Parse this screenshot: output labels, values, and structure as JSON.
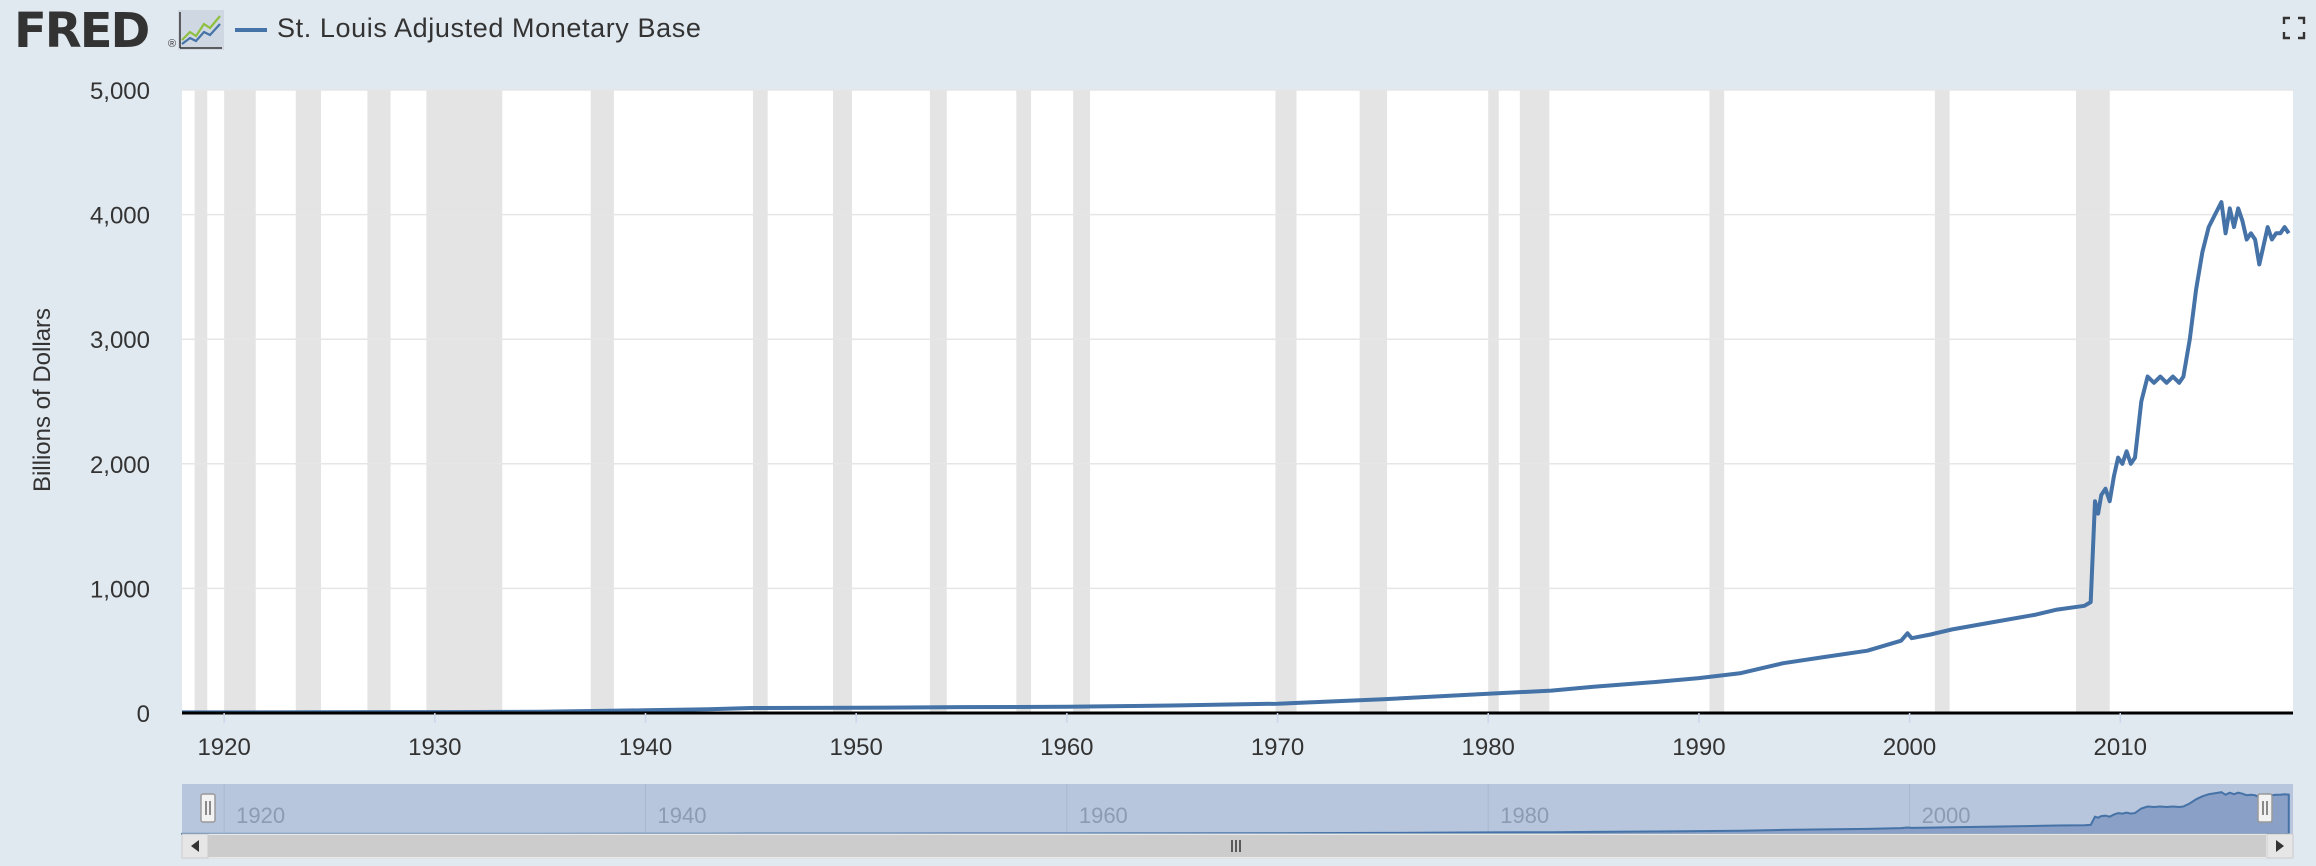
{
  "header": {
    "logo_text": "FRED",
    "logo_reg": "®",
    "graph_icon": "line-chart-icon",
    "fullscreen_icon": "fullscreen-icon"
  },
  "colors": {
    "series": "#4572a7",
    "recession": "#e4e4e4",
    "background": "#e1e9f0",
    "plot": "#ffffff",
    "navigator_fill": "#b7c6dc",
    "navigator_series": "#4572a7"
  },
  "chart_data": {
    "type": "line",
    "title": "",
    "xlabel": "",
    "ylabel": "Billions of Dollars",
    "xlim": [
      1918,
      2018.2
    ],
    "ylim": [
      0,
      5000
    ],
    "grid": true,
    "legend": "top-left",
    "x_ticks": [
      "1920",
      "1930",
      "1940",
      "1950",
      "1960",
      "1970",
      "1980",
      "1990",
      "2000",
      "2010"
    ],
    "y_ticks": [
      "0",
      "1,000",
      "2,000",
      "3,000",
      "4,000",
      "5,000"
    ],
    "navigator_ticks": [
      "1920",
      "1940",
      "1960",
      "1980",
      "2000"
    ],
    "series": [
      {
        "name": "St. Louis Adjusted Monetary Base",
        "color": "#4572a7",
        "x": [
          1918,
          1930,
          1935,
          1940,
          1943,
          1945,
          1950,
          1955,
          1960,
          1965,
          1970,
          1975,
          1980,
          1983,
          1985,
          1988,
          1990,
          1992,
          1994,
          1996,
          1998,
          1999.6,
          1999.9,
          2000.1,
          2001,
          2002,
          2004,
          2006,
          2007,
          2008.3,
          2008.6,
          2008.8,
          2008.95,
          2009.1,
          2009.3,
          2009.5,
          2009.7,
          2009.9,
          2010.1,
          2010.3,
          2010.5,
          2010.7,
          2011.0,
          2011.3,
          2011.6,
          2011.9,
          2012.2,
          2012.5,
          2012.8,
          2013.0,
          2013.3,
          2013.6,
          2013.9,
          2014.2,
          2014.5,
          2014.8,
          2015.0,
          2015.2,
          2015.4,
          2015.6,
          2015.8,
          2016.0,
          2016.2,
          2016.4,
          2016.6,
          2016.8,
          2017.0,
          2017.2,
          2017.4,
          2017.6,
          2017.8,
          2018.0
        ],
        "values": [
          5,
          7,
          10,
          22,
          30,
          40,
          42,
          47,
          50,
          60,
          75,
          110,
          155,
          180,
          210,
          250,
          280,
          320,
          400,
          450,
          500,
          580,
          640,
          600,
          630,
          670,
          730,
          790,
          830,
          860,
          890,
          1700,
          1600,
          1750,
          1800,
          1700,
          1900,
          2050,
          2000,
          2100,
          2000,
          2050,
          2500,
          2700,
          2650,
          2700,
          2650,
          2700,
          2650,
          2700,
          3000,
          3400,
          3700,
          3900,
          4000,
          4100,
          3850,
          4050,
          3900,
          4050,
          3950,
          3800,
          3850,
          3800,
          3600,
          3750,
          3900,
          3800,
          3850,
          3850,
          3900,
          3850
        ]
      }
    ],
    "recessions": [
      [
        1918.6,
        1919.2
      ],
      [
        1920.0,
        1921.5
      ],
      [
        1923.4,
        1924.6
      ],
      [
        1926.8,
        1927.9
      ],
      [
        1929.6,
        1933.2
      ],
      [
        1937.4,
        1938.5
      ],
      [
        1945.1,
        1945.8
      ],
      [
        1948.9,
        1949.8
      ],
      [
        1953.5,
        1954.3
      ],
      [
        1957.6,
        1958.3
      ],
      [
        1960.3,
        1961.1
      ],
      [
        1969.9,
        1970.9
      ],
      [
        1973.9,
        1975.2
      ],
      [
        1980.0,
        1980.5
      ],
      [
        1981.5,
        1982.9
      ],
      [
        1990.5,
        1991.2
      ],
      [
        2001.2,
        2001.9
      ],
      [
        2007.9,
        2009.5
      ]
    ]
  }
}
